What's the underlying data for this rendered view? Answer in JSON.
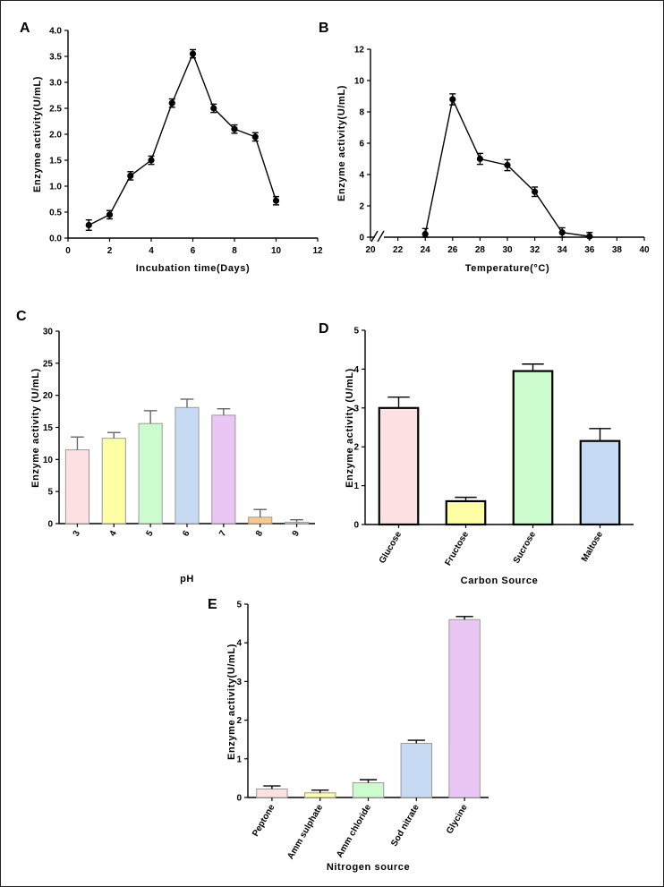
{
  "figure": {
    "panels": [
      "A",
      "B",
      "C",
      "D",
      "E"
    ]
  },
  "chart_data": [
    {
      "id": "A",
      "type": "line",
      "title": "",
      "xlabel": "Incubation time(Days)",
      "ylabel": "Enzyme activity(U/mL)",
      "xlim": [
        0,
        12
      ],
      "ylim": [
        0,
        4.0
      ],
      "xticks": [
        0,
        2,
        4,
        6,
        8,
        10,
        12
      ],
      "xtick_labels": [
        "0",
        "2",
        "4",
        "6",
        "8",
        "10",
        "12"
      ],
      "yticks": [
        0,
        0.5,
        1.0,
        1.5,
        2.0,
        2.5,
        3.0,
        3.5,
        4.0
      ],
      "ytick_labels": [
        "0.0",
        "0.5",
        "1.0",
        "1.5",
        "2.0",
        "2.5",
        "3.0",
        "3.5",
        "4.0"
      ],
      "x": [
        1,
        2,
        3,
        4,
        5,
        6,
        7,
        8,
        9,
        10
      ],
      "y": [
        0.25,
        0.45,
        1.2,
        1.5,
        2.6,
        3.55,
        2.5,
        2.1,
        1.95,
        0.72
      ],
      "err": [
        0.1,
        0.08,
        0.08,
        0.08,
        0.08,
        0.08,
        0.08,
        0.08,
        0.08,
        0.08
      ]
    },
    {
      "id": "B",
      "type": "line",
      "title": "",
      "xlabel": "Temperature(°C)",
      "ylabel": "Enzyme activity(U/mL)",
      "xlim": [
        20,
        40
      ],
      "ylim": [
        0,
        12
      ],
      "axis_break": true,
      "xticks": [
        20,
        22,
        24,
        26,
        28,
        30,
        32,
        34,
        36,
        38,
        40
      ],
      "xtick_labels": [
        "20",
        "22",
        "24",
        "26",
        "28",
        "30",
        "32",
        "34",
        "36",
        "38",
        "40"
      ],
      "yticks": [
        0,
        2,
        4,
        6,
        8,
        10,
        12
      ],
      "ytick_labels": [
        "0",
        "2",
        "4",
        "6",
        "8",
        "10",
        "12"
      ],
      "x": [
        24,
        26,
        28,
        30,
        32,
        34,
        36
      ],
      "y": [
        0.2,
        8.8,
        5.0,
        4.6,
        2.9,
        0.3,
        0.05
      ],
      "err": [
        0.35,
        0.35,
        0.35,
        0.35,
        0.3,
        0.3,
        0.25
      ]
    },
    {
      "id": "C",
      "type": "bar",
      "title": "",
      "xlabel": "pH",
      "ylabel": "Enzyme activity (U/mL)",
      "ylim": [
        0,
        30
      ],
      "yticks": [
        0,
        5,
        10,
        15,
        20,
        25,
        30
      ],
      "ytick_labels": [
        "0",
        "5",
        "10",
        "15",
        "20",
        "25",
        "30"
      ],
      "categories": [
        "3",
        "4",
        "5",
        "6",
        "7",
        "8",
        "9"
      ],
      "values": [
        11.5,
        13.3,
        15.6,
        18.1,
        16.9,
        1.0,
        0.2
      ],
      "err": [
        2.0,
        0.9,
        2.0,
        1.3,
        1.0,
        1.2,
        0.4
      ],
      "colors": [
        "#fde0e2",
        "#fefea4",
        "#ccfcce",
        "#c6daf4",
        "#eac6f4",
        "#fbc98a",
        "#e2e2e2"
      ],
      "edge": "#9a9a9a"
    },
    {
      "id": "D",
      "type": "bar",
      "title": "",
      "xlabel": "Carbon Source",
      "ylabel": "Enzyme activity (U/mL)",
      "ylim": [
        0,
        5
      ],
      "yticks": [
        0,
        1,
        2,
        3,
        4,
        5
      ],
      "ytick_labels": [
        "0",
        "1",
        "2",
        "3",
        "4",
        "5"
      ],
      "categories": [
        "Glucose",
        "Fructose",
        "Sucrose",
        "Maltose"
      ],
      "values": [
        3.0,
        0.6,
        3.95,
        2.15
      ],
      "err": [
        0.28,
        0.1,
        0.18,
        0.32
      ],
      "colors": [
        "#fde0e2",
        "#fefea4",
        "#ccfcce",
        "#c6daf4"
      ],
      "edge": "#000000"
    },
    {
      "id": "E",
      "type": "bar",
      "title": "",
      "xlabel": "Nitrogen source",
      "ylabel": "Enzyme activity(U/mL)",
      "ylim": [
        0,
        5
      ],
      "yticks": [
        0,
        1,
        2,
        3,
        4,
        5
      ],
      "ytick_labels": [
        "0",
        "1",
        "2",
        "3",
        "4",
        "5"
      ],
      "categories": [
        "Peptone",
        "Amm sulphate",
        "Amm chloride",
        "Sod nitrate",
        "Glycine"
      ],
      "values": [
        0.22,
        0.12,
        0.38,
        1.4,
        4.6
      ],
      "err": [
        0.08,
        0.07,
        0.08,
        0.08,
        0.08
      ],
      "colors": [
        "#fde0e2",
        "#fefea4",
        "#ccfcce",
        "#c6daf4",
        "#eac6f4"
      ],
      "edge": "#9a9a9a"
    }
  ]
}
